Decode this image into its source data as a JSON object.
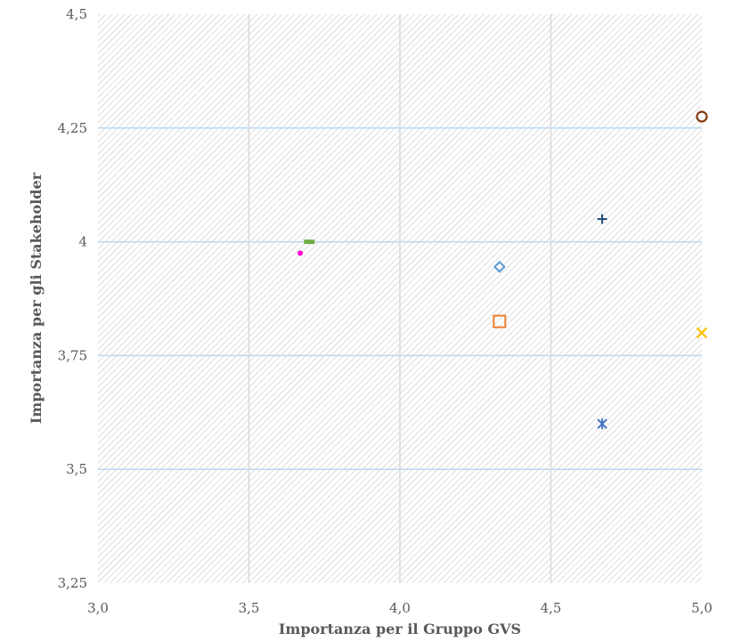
{
  "chart_data": {
    "type": "scatter",
    "title": "",
    "xlabel": "Importanza per il Gruppo GVS",
    "ylabel": "Importanza per gli Stakeholder",
    "xlim": [
      3.0,
      5.0
    ],
    "ylim": [
      3.25,
      4.5
    ],
    "x_ticks": [
      3.0,
      3.5,
      4.0,
      4.5,
      5.0
    ],
    "x_tick_labels": [
      "3,0",
      "3,5",
      "4,0",
      "4,5",
      "5,0"
    ],
    "y_ticks": [
      3.25,
      3.5,
      3.75,
      4.0,
      4.25,
      4.5
    ],
    "y_tick_labels": [
      "3,25",
      "3,5",
      "3,75",
      "4",
      "4,25",
      "4,5"
    ],
    "grid": true,
    "legend": "none",
    "plot_background": "diagonal hatch, light gray",
    "points": [
      {
        "x": 3.67,
        "y": 3.975,
        "marker": "dot",
        "color": "#ff00cc"
      },
      {
        "x": 3.7,
        "y": 4.0,
        "marker": "dash",
        "color": "#70ad47"
      },
      {
        "x": 4.33,
        "y": 3.945,
        "marker": "diamond",
        "color": "#5b9bd5"
      },
      {
        "x": 4.33,
        "y": 3.825,
        "marker": "square",
        "color": "#ed7d31"
      },
      {
        "x": 4.67,
        "y": 4.05,
        "marker": "plus",
        "color": "#1f4e79"
      },
      {
        "x": 4.67,
        "y": 3.6,
        "marker": "asterisk",
        "color": "#4472c4"
      },
      {
        "x": 5.0,
        "y": 4.275,
        "marker": "circle",
        "color": "#843c0c"
      },
      {
        "x": 5.0,
        "y": 3.8,
        "marker": "x",
        "color": "#ffc000"
      }
    ]
  }
}
